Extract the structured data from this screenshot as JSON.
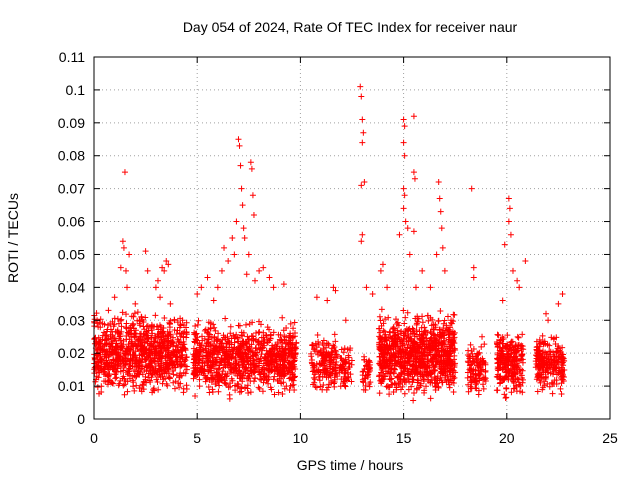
{
  "chart_data": {
    "type": "scatter",
    "title": "Day 054 of 2024, Rate Of TEC Index for receiver naur",
    "xlabel": "GPS time / hours",
    "ylabel": "ROTI / TECUs",
    "xlim": [
      0,
      25
    ],
    "ylim": [
      0,
      0.11
    ],
    "xticks": [
      0,
      5,
      10,
      15,
      20,
      25
    ],
    "xtick_labels": [
      "0",
      "5",
      "10",
      "15",
      "20",
      "25"
    ],
    "yticks": [
      0,
      0.01,
      0.02,
      0.03,
      0.04,
      0.05,
      0.06,
      0.07,
      0.08,
      0.09,
      0.1,
      0.11
    ],
    "ytick_labels": [
      "0",
      "0.01",
      "0.02",
      "0.03",
      "0.04",
      "0.05",
      "0.06",
      "0.07",
      "0.08",
      "0.09",
      "0.1",
      "0.11"
    ],
    "grid": true,
    "marker": "+",
    "marker_color": "#ff0000",
    "series": [
      {
        "name": "ROTI",
        "points": [
          [
            0.1,
            0.012
          ],
          [
            0.15,
            0.03
          ],
          [
            0.2,
            0.028
          ],
          [
            0.3,
            0.018
          ],
          [
            0.4,
            0.022
          ],
          [
            0.5,
            0.015
          ],
          [
            0.6,
            0.02
          ],
          [
            0.7,
            0.033
          ],
          [
            0.8,
            0.025
          ],
          [
            1.0,
            0.037
          ],
          [
            1.1,
            0.02
          ],
          [
            1.3,
            0.046
          ],
          [
            1.4,
            0.054
          ],
          [
            1.45,
            0.052
          ],
          [
            1.5,
            0.075
          ],
          [
            1.55,
            0.045
          ],
          [
            1.6,
            0.04
          ],
          [
            1.7,
            0.05
          ],
          [
            1.8,
            0.025
          ],
          [
            2.0,
            0.035
          ],
          [
            2.2,
            0.03
          ],
          [
            2.5,
            0.051
          ],
          [
            2.6,
            0.045
          ],
          [
            2.8,
            0.028
          ],
          [
            3.0,
            0.04
          ],
          [
            3.1,
            0.042
          ],
          [
            3.2,
            0.037
          ],
          [
            3.3,
            0.046
          ],
          [
            3.4,
            0.045
          ],
          [
            3.5,
            0.048
          ],
          [
            3.6,
            0.047
          ],
          [
            3.7,
            0.035
          ],
          [
            3.9,
            0.03
          ],
          [
            4.2,
            0.025
          ],
          [
            4.5,
            0.015
          ],
          [
            5.0,
            0.038
          ],
          [
            5.2,
            0.04
          ],
          [
            5.5,
            0.043
          ],
          [
            5.8,
            0.036
          ],
          [
            6.0,
            0.04
          ],
          [
            6.2,
            0.045
          ],
          [
            6.3,
            0.052
          ],
          [
            6.5,
            0.048
          ],
          [
            6.7,
            0.055
          ],
          [
            6.8,
            0.05
          ],
          [
            6.9,
            0.06
          ],
          [
            7.0,
            0.085
          ],
          [
            7.05,
            0.083
          ],
          [
            7.1,
            0.077
          ],
          [
            7.15,
            0.07
          ],
          [
            7.2,
            0.065
          ],
          [
            7.25,
            0.058
          ],
          [
            7.3,
            0.055
          ],
          [
            7.4,
            0.044
          ],
          [
            7.5,
            0.05
          ],
          [
            7.6,
            0.078
          ],
          [
            7.65,
            0.076
          ],
          [
            7.7,
            0.068
          ],
          [
            7.75,
            0.062
          ],
          [
            7.8,
            0.042
          ],
          [
            8.0,
            0.045
          ],
          [
            8.2,
            0.046
          ],
          [
            8.5,
            0.043
          ],
          [
            8.7,
            0.04
          ],
          [
            9.2,
            0.041
          ],
          [
            10.8,
            0.037
          ],
          [
            11.0,
            0.02
          ],
          [
            11.3,
            0.036
          ],
          [
            11.6,
            0.04
          ],
          [
            11.7,
            0.039
          ],
          [
            12.2,
            0.03
          ],
          [
            12.9,
            0.101
          ],
          [
            12.95,
            0.098
          ],
          [
            13.0,
            0.091
          ],
          [
            13.05,
            0.087
          ],
          [
            13.0,
            0.084
          ],
          [
            13.1,
            0.072
          ],
          [
            12.95,
            0.071
          ],
          [
            13.0,
            0.056
          ],
          [
            12.95,
            0.054
          ],
          [
            13.2,
            0.04
          ],
          [
            13.5,
            0.038
          ],
          [
            13.9,
            0.045
          ],
          [
            14.0,
            0.047
          ],
          [
            14.2,
            0.04
          ],
          [
            14.8,
            0.056
          ],
          [
            15.0,
            0.091
          ],
          [
            15.05,
            0.089
          ],
          [
            15.0,
            0.084
          ],
          [
            15.05,
            0.08
          ],
          [
            15.0,
            0.07
          ],
          [
            15.05,
            0.068
          ],
          [
            15.0,
            0.064
          ],
          [
            15.1,
            0.06
          ],
          [
            15.2,
            0.058
          ],
          [
            15.3,
            0.05
          ],
          [
            15.5,
            0.092
          ],
          [
            15.5,
            0.075
          ],
          [
            15.55,
            0.073
          ],
          [
            15.5,
            0.057
          ],
          [
            15.6,
            0.04
          ],
          [
            15.9,
            0.045
          ],
          [
            16.3,
            0.04
          ],
          [
            16.6,
            0.05
          ],
          [
            16.7,
            0.072
          ],
          [
            16.75,
            0.067
          ],
          [
            16.8,
            0.063
          ],
          [
            16.85,
            0.058
          ],
          [
            16.9,
            0.052
          ],
          [
            17.0,
            0.045
          ],
          [
            17.3,
            0.03
          ],
          [
            18.3,
            0.07
          ],
          [
            18.4,
            0.046
          ],
          [
            18.4,
            0.043
          ],
          [
            18.8,
            0.025
          ],
          [
            19.8,
            0.036
          ],
          [
            19.9,
            0.053
          ],
          [
            20.1,
            0.067
          ],
          [
            20.15,
            0.064
          ],
          [
            20.1,
            0.06
          ],
          [
            20.2,
            0.056
          ],
          [
            20.3,
            0.045
          ],
          [
            20.5,
            0.042
          ],
          [
            20.6,
            0.04
          ],
          [
            20.9,
            0.048
          ],
          [
            21.5,
            0.022
          ],
          [
            21.9,
            0.032
          ],
          [
            22.0,
            0.03
          ],
          [
            22.5,
            0.035
          ],
          [
            22.7,
            0.038
          ]
        ],
        "clusters": [
          {
            "x_range": [
              0.0,
              4.5
            ],
            "y_range": [
              0.005,
              0.035
            ],
            "count": 900
          },
          {
            "x_range": [
              4.8,
              9.8
            ],
            "y_range": [
              0.005,
              0.032
            ],
            "count": 950
          },
          {
            "x_range": [
              10.5,
              11.8
            ],
            "y_range": [
              0.006,
              0.028
            ],
            "count": 170
          },
          {
            "x_range": [
              11.9,
              12.5
            ],
            "y_range": [
              0.006,
              0.026
            ],
            "count": 60
          },
          {
            "x_range": [
              13.0,
              13.4
            ],
            "y_range": [
              0.007,
              0.022
            ],
            "count": 40
          },
          {
            "x_range": [
              13.8,
              17.5
            ],
            "y_range": [
              0.004,
              0.035
            ],
            "count": 950
          },
          {
            "x_range": [
              18.1,
              19.0
            ],
            "y_range": [
              0.006,
              0.025
            ],
            "count": 110
          },
          {
            "x_range": [
              19.5,
              20.8
            ],
            "y_range": [
              0.004,
              0.03
            ],
            "count": 260
          },
          {
            "x_range": [
              21.4,
              22.8
            ],
            "y_range": [
              0.006,
              0.028
            ],
            "count": 230
          }
        ]
      }
    ]
  }
}
